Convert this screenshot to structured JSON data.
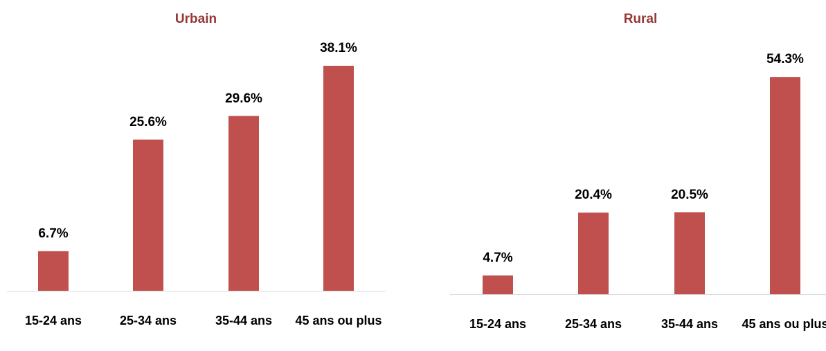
{
  "chart_data": [
    {
      "type": "bar",
      "title": "Urbain",
      "title_color": "#953735",
      "categories": [
        "15-24 ans",
        "25-34 ans",
        "35-44 ans",
        "45 ans ou plus"
      ],
      "values": [
        6.7,
        25.6,
        29.6,
        38.1
      ],
      "value_labels": [
        "6.7%",
        "25.6%",
        "29.6%",
        "38.1%"
      ],
      "color": "#c0504d"
    },
    {
      "type": "bar",
      "title": "Rural",
      "title_color": "#953735",
      "categories": [
        "15-24 ans",
        "25-34 ans",
        "35-44 ans",
        "45 ans ou plus"
      ],
      "values": [
        4.7,
        20.4,
        20.5,
        54.3
      ],
      "value_labels": [
        "4.7%",
        "20.4%",
        "20.5%",
        "54.3%"
      ],
      "color": "#c0504d"
    }
  ]
}
